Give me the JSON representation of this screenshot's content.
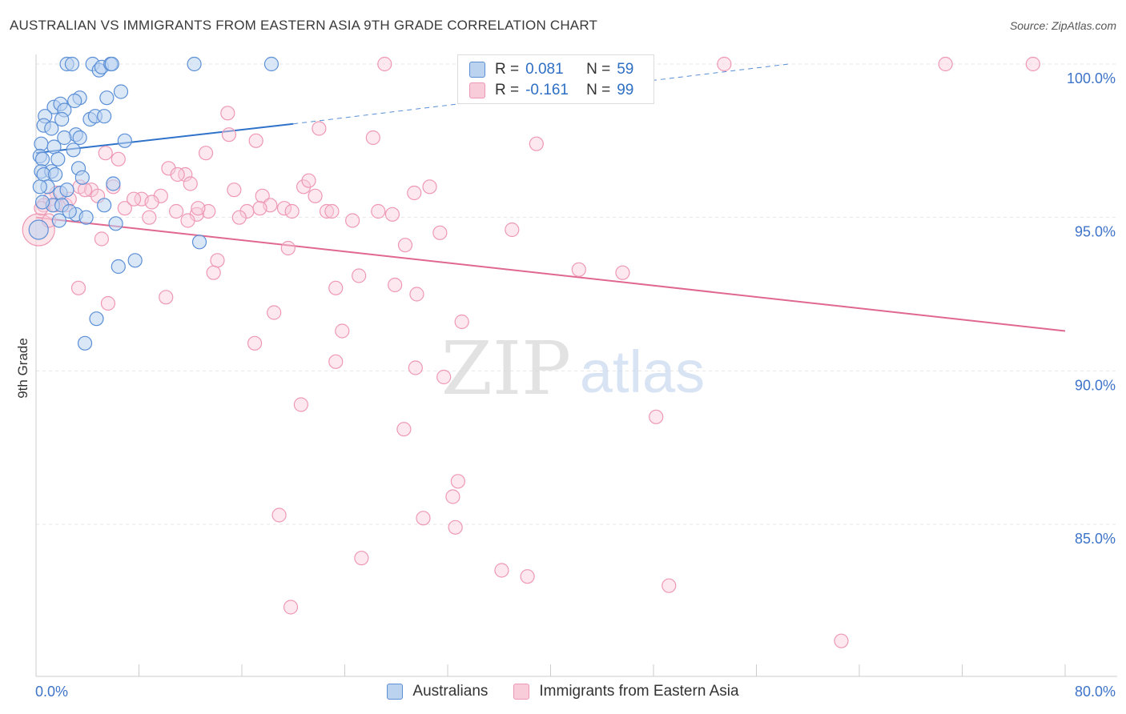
{
  "header": {
    "title": "AUSTRALIAN VS IMMIGRANTS FROM EASTERN ASIA 9TH GRADE CORRELATION CHART",
    "source": "Source: ZipAtlas.com"
  },
  "watermark": {
    "zip": "ZIP",
    "atlas": "atlas"
  },
  "legend_top": {
    "rows": [
      {
        "r_label": "R =",
        "r_value": "0.081",
        "n_label": "N =",
        "n_value": "59"
      },
      {
        "r_label": "R =",
        "r_value": "-0.161",
        "n_label": "N =",
        "n_value": "99"
      }
    ]
  },
  "legend_bottom": {
    "items": [
      "Australians",
      "Immigrants from Eastern Asia"
    ]
  },
  "colors": {
    "blue_stroke": "#5b8fd6",
    "blue_fill": "#bcd3f0",
    "blue_line": "#2f72c9",
    "pink_stroke": "#ee98b5",
    "pink_fill": "#f8cdd9",
    "pink_line": "#e0688f",
    "tick_label": "#3d73c8",
    "grid": "#e6e6e6"
  },
  "chart_data": {
    "type": "scatter",
    "title": "AUSTRALIAN VS IMMIGRANTS FROM EASTERN ASIA 9TH GRADE CORRELATION CHART",
    "xlabel": "",
    "ylabel": "9th Grade",
    "xlim": [
      0,
      80
    ],
    "ylim": [
      80.5,
      100.7
    ],
    "x_tick_labels": [
      "0.0%",
      "80.0%"
    ],
    "y_ticks": [
      85,
      90,
      95,
      100
    ],
    "y_tick_labels": [
      "85.0%",
      "90.0%",
      "95.0%",
      "100.0%"
    ],
    "grid": "horizontal dashed",
    "legend": "top-center",
    "series": [
      {
        "name": "Australians",
        "r": 0.081,
        "n": 59,
        "trend": {
          "x": [
            0,
            20
          ],
          "y": [
            97.1,
            98.05
          ],
          "dashed_extension": {
            "x": [
              20,
              58.5
            ],
            "y": [
              98.05,
              100.0
            ]
          }
        },
        "points": [
          [
            2.4,
            100.0
          ],
          [
            2.8,
            100.0
          ],
          [
            4.4,
            100.0
          ],
          [
            4.9,
            99.8
          ],
          [
            5.1,
            99.9
          ],
          [
            5.8,
            100.0
          ],
          [
            5.9,
            100.0
          ],
          [
            12.3,
            100.0
          ],
          [
            18.3,
            100.0
          ],
          [
            6.6,
            99.1
          ],
          [
            3.4,
            98.9
          ],
          [
            5.5,
            98.9
          ],
          [
            1.4,
            98.6
          ],
          [
            1.9,
            98.7
          ],
          [
            2.2,
            98.5
          ],
          [
            3.0,
            98.8
          ],
          [
            0.7,
            98.3
          ],
          [
            2.0,
            98.2
          ],
          [
            4.2,
            98.2
          ],
          [
            4.6,
            98.3
          ],
          [
            5.3,
            98.3
          ],
          [
            0.6,
            98.0
          ],
          [
            1.2,
            97.9
          ],
          [
            3.1,
            97.7
          ],
          [
            3.4,
            97.6
          ],
          [
            2.2,
            97.6
          ],
          [
            0.4,
            97.4
          ],
          [
            6.9,
            97.5
          ],
          [
            1.4,
            97.3
          ],
          [
            2.9,
            97.2
          ],
          [
            0.3,
            97.0
          ],
          [
            0.5,
            96.9
          ],
          [
            1.7,
            96.9
          ],
          [
            3.3,
            96.6
          ],
          [
            0.4,
            96.5
          ],
          [
            1.2,
            96.5
          ],
          [
            0.6,
            96.4
          ],
          [
            1.5,
            96.4
          ],
          [
            3.6,
            96.3
          ],
          [
            6.0,
            96.1
          ],
          [
            0.9,
            96.0
          ],
          [
            1.9,
            95.8
          ],
          [
            2.4,
            95.9
          ],
          [
            5.3,
            95.4
          ],
          [
            1.3,
            95.4
          ],
          [
            2.0,
            95.4
          ],
          [
            3.1,
            95.1
          ],
          [
            3.9,
            95.0
          ],
          [
            1.8,
            94.9
          ],
          [
            6.2,
            94.8
          ],
          [
            0.2,
            94.6
          ],
          [
            12.7,
            94.2
          ],
          [
            7.7,
            93.6
          ],
          [
            6.4,
            93.4
          ],
          [
            4.7,
            91.7
          ],
          [
            3.8,
            90.9
          ],
          [
            0.5,
            95.5
          ],
          [
            0.3,
            96.0
          ],
          [
            2.6,
            95.2
          ]
        ]
      },
      {
        "name": "Immigrants from Eastern Asia",
        "r": -0.161,
        "n": 99,
        "trend": {
          "x": [
            0,
            80
          ],
          "y": [
            95.0,
            91.3
          ]
        },
        "points": [
          [
            27.1,
            100.0
          ],
          [
            34.5,
            100.0
          ],
          [
            38.7,
            100.0
          ],
          [
            53.5,
            100.0
          ],
          [
            70.7,
            100.0
          ],
          [
            77.5,
            100.0
          ],
          [
            14.9,
            98.4
          ],
          [
            22.0,
            97.9
          ],
          [
            15.0,
            97.7
          ],
          [
            26.2,
            97.6
          ],
          [
            17.1,
            97.5
          ],
          [
            38.9,
            97.4
          ],
          [
            5.4,
            97.1
          ],
          [
            13.2,
            97.1
          ],
          [
            6.4,
            96.9
          ],
          [
            10.3,
            96.6
          ],
          [
            11.6,
            96.4
          ],
          [
            11.0,
            96.4
          ],
          [
            12.0,
            96.1
          ],
          [
            3.4,
            96.0
          ],
          [
            6.0,
            96.0
          ],
          [
            4.3,
            95.9
          ],
          [
            15.4,
            95.9
          ],
          [
            20.8,
            96.0
          ],
          [
            30.6,
            96.0
          ],
          [
            29.4,
            95.8
          ],
          [
            1.6,
            95.8
          ],
          [
            4.8,
            95.7
          ],
          [
            9.7,
            95.7
          ],
          [
            17.6,
            95.7
          ],
          [
            21.7,
            95.7
          ],
          [
            1.1,
            95.6
          ],
          [
            8.2,
            95.6
          ],
          [
            9.0,
            95.5
          ],
          [
            18.2,
            95.4
          ],
          [
            19.3,
            95.3
          ],
          [
            0.6,
            95.4
          ],
          [
            1.5,
            95.4
          ],
          [
            2.3,
            95.4
          ],
          [
            6.9,
            95.3
          ],
          [
            10.9,
            95.2
          ],
          [
            13.4,
            95.2
          ],
          [
            16.4,
            95.2
          ],
          [
            19.9,
            95.2
          ],
          [
            22.6,
            95.2
          ],
          [
            23.0,
            95.2
          ],
          [
            12.5,
            95.1
          ],
          [
            27.7,
            95.1
          ],
          [
            8.8,
            95.0
          ],
          [
            11.8,
            94.9
          ],
          [
            24.6,
            94.9
          ],
          [
            37.0,
            94.6
          ],
          [
            5.1,
            94.3
          ],
          [
            28.7,
            94.1
          ],
          [
            19.6,
            94.0
          ],
          [
            14.1,
            93.6
          ],
          [
            42.2,
            93.3
          ],
          [
            45.6,
            93.2
          ],
          [
            13.8,
            93.2
          ],
          [
            25.1,
            93.1
          ],
          [
            27.9,
            92.8
          ],
          [
            3.3,
            92.7
          ],
          [
            23.3,
            92.7
          ],
          [
            29.6,
            92.5
          ],
          [
            10.1,
            92.4
          ],
          [
            5.6,
            92.2
          ],
          [
            18.5,
            91.9
          ],
          [
            33.1,
            91.6
          ],
          [
            23.8,
            91.3
          ],
          [
            17.0,
            90.9
          ],
          [
            23.3,
            90.3
          ],
          [
            29.5,
            90.1
          ],
          [
            31.7,
            89.8
          ],
          [
            20.6,
            88.9
          ],
          [
            48.2,
            88.5
          ],
          [
            28.6,
            88.1
          ],
          [
            32.8,
            86.4
          ],
          [
            32.4,
            85.9
          ],
          [
            18.9,
            85.3
          ],
          [
            30.1,
            85.2
          ],
          [
            32.6,
            84.9
          ],
          [
            25.3,
            83.9
          ],
          [
            36.2,
            83.5
          ],
          [
            38.2,
            83.3
          ],
          [
            49.2,
            83.0
          ],
          [
            19.8,
            82.3
          ],
          [
            62.6,
            81.2
          ],
          [
            0.2,
            94.6
          ],
          [
            1.0,
            94.9
          ],
          [
            2.6,
            95.6
          ],
          [
            3.8,
            95.9
          ],
          [
            7.6,
            95.6
          ],
          [
            12.6,
            95.3
          ],
          [
            15.8,
            95.0
          ],
          [
            17.4,
            95.3
          ],
          [
            21.2,
            96.2
          ],
          [
            26.6,
            95.2
          ],
          [
            31.4,
            94.5
          ],
          [
            0.4,
            95.3
          ]
        ]
      }
    ]
  }
}
